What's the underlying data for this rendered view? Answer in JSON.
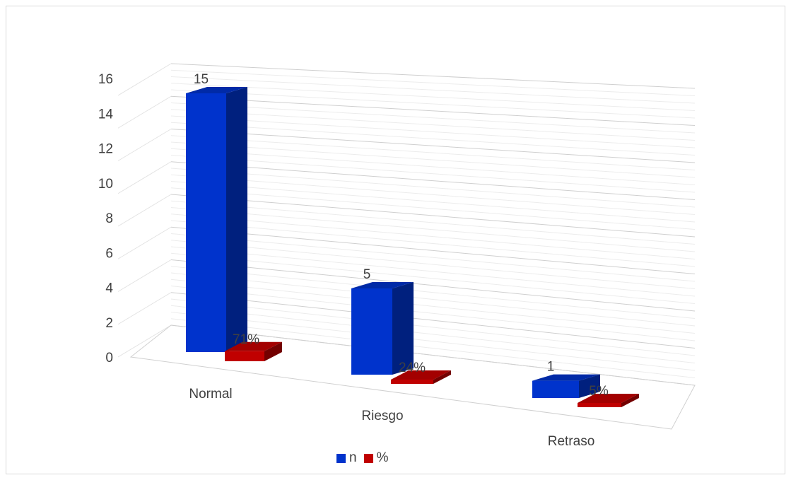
{
  "chart_data": {
    "type": "bar",
    "style": "3d-column",
    "categories": [
      "Normal",
      "Riesgo",
      "Retraso"
    ],
    "series": [
      {
        "name": "n",
        "values": [
          15,
          5,
          1
        ],
        "labels": [
          "15",
          "5",
          "1"
        ],
        "color": "#0033CC"
      },
      {
        "name": "%",
        "values": [
          0.71,
          0.24,
          0.05
        ],
        "labels": [
          "71%",
          "24%",
          "5%"
        ],
        "color": "#C00000"
      }
    ],
    "yticks": [
      "0",
      "2",
      "4",
      "6",
      "8",
      "10",
      "12",
      "14",
      "16"
    ],
    "ylim": [
      0,
      16
    ],
    "grid": true,
    "legend": "bottom"
  }
}
